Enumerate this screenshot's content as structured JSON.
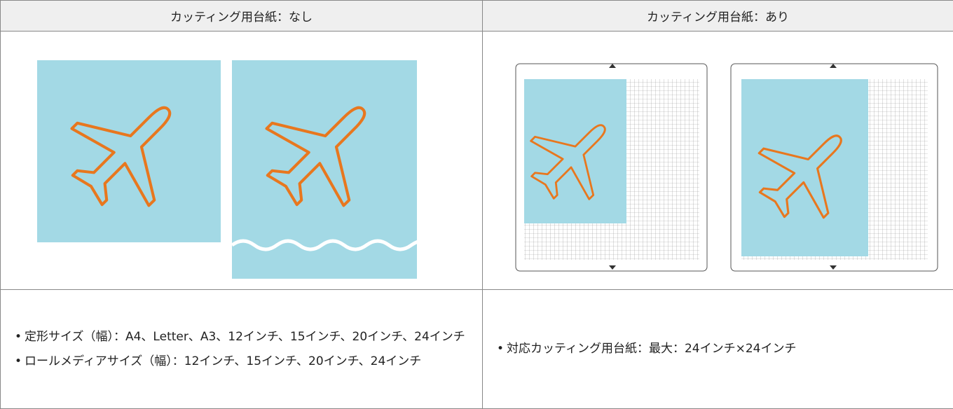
{
  "table": {
    "headers": [
      "カッティング用台紙：なし",
      "カッティング用台紙：あり"
    ],
    "rows": [
      [
        [
          "定形サイズ（幅）：A4、Letter、A3、12インチ、15インチ、20インチ、24インチ",
          "ロールメディアサイズ（幅）：12インチ、15インチ、20インチ、24インチ"
        ],
        [
          "対応カッティング用台紙：最大：24インチ×24インチ"
        ]
      ]
    ]
  }
}
